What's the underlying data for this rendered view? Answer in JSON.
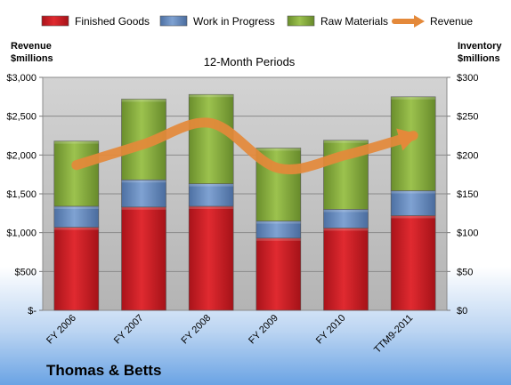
{
  "chart_data": {
    "type": "bar",
    "stacked": true,
    "title": "12-Month Periods",
    "company": "Thomas & Betts",
    "categories": [
      "FY 2006",
      "FY 2007",
      "FY 2008",
      "FY 2009",
      "FY 2010",
      "TTM9-2011"
    ],
    "left_axis": {
      "label_line1": "Revenue",
      "label_line2": "$millions",
      "ylim": [
        0,
        3000
      ],
      "ticks": [
        0,
        500,
        1000,
        1500,
        2000,
        2500,
        3000
      ],
      "tick_labels": [
        "$-",
        "$500",
        "$1,000",
        "$1,500",
        "$2,000",
        "$2,500",
        "$3,000"
      ]
    },
    "right_axis": {
      "label_line1": "Inventory",
      "label_line2": "$millions",
      "ylim": [
        0,
        300
      ],
      "ticks": [
        0,
        50,
        100,
        150,
        200,
        250,
        300
      ],
      "tick_labels": [
        "$0",
        "$50",
        "$100",
        "$150",
        "$200",
        "$250",
        "$300"
      ]
    },
    "series": [
      {
        "name": "Finished Goods",
        "axis": "right",
        "color": "#c0151c",
        "values": [
          107,
          133,
          134,
          93,
          106,
          122
        ]
      },
      {
        "name": "Work in Progress",
        "axis": "right",
        "color": "#5b82b8",
        "values": [
          27,
          35,
          29,
          22,
          24,
          32
        ]
      },
      {
        "name": "Raw Materials",
        "axis": "right",
        "color": "#7ea33a",
        "values": [
          84,
          104,
          115,
          94,
          89,
          121
        ]
      },
      {
        "name": "Revenue",
        "axis": "left",
        "type": "line",
        "color": "#e4893a",
        "values": [
          1870,
          2140,
          2410,
          1830,
          2000,
          2250
        ]
      }
    ],
    "grid": true,
    "legend_position": "top"
  }
}
